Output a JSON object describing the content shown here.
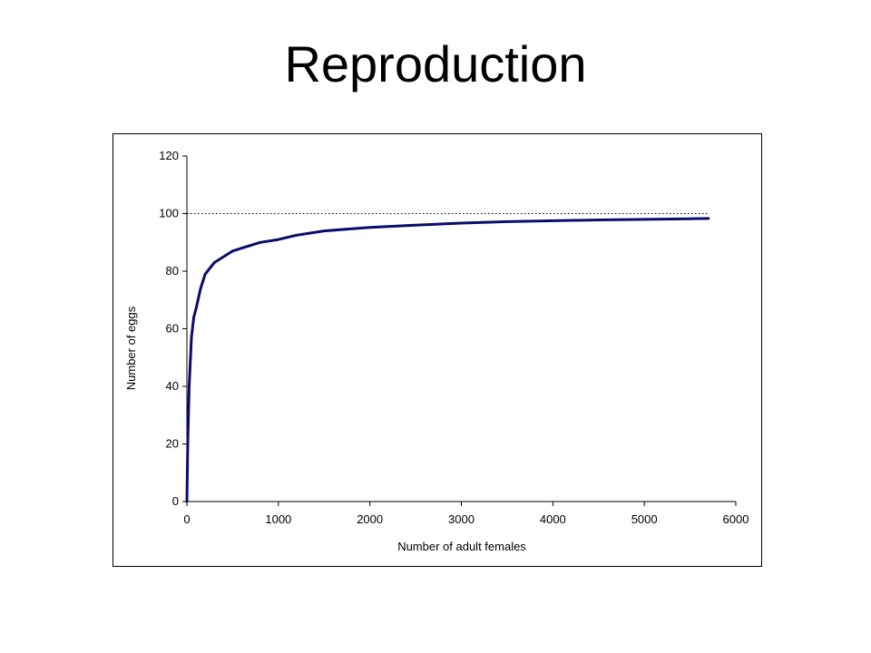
{
  "slide": {
    "title": "Reproduction"
  },
  "chart_data": {
    "type": "line",
    "title": "",
    "xlabel": "Number of adult females",
    "ylabel": "Number of eggs",
    "xlim": [
      0,
      6000
    ],
    "ylim": [
      0,
      120
    ],
    "x_ticks": [
      "0",
      "1000",
      "2000",
      "3000",
      "4000",
      "5000",
      "6000"
    ],
    "y_ticks": [
      "0",
      "20",
      "40",
      "60",
      "80",
      "100",
      "120"
    ],
    "grid": false,
    "legend": "none",
    "reference_line": {
      "y": 100,
      "x_range": [
        0,
        5700
      ],
      "style": "dotted"
    },
    "series": [
      {
        "color": "#0b0b6e",
        "x": [
          0,
          10,
          25,
          50,
          75,
          100,
          150,
          200,
          250,
          300,
          400,
          500,
          600,
          800,
          1000,
          1200,
          1500,
          2000,
          2500,
          3000,
          3500,
          4000,
          4500,
          5000,
          5500,
          5700
        ],
        "y": [
          0,
          21,
          40,
          57,
          64,
          67,
          74,
          79,
          81,
          83,
          85,
          87,
          88,
          90,
          91,
          92.5,
          94,
          95.2,
          96,
          96.7,
          97.2,
          97.5,
          97.8,
          98,
          98.2,
          98.3
        ]
      }
    ]
  }
}
